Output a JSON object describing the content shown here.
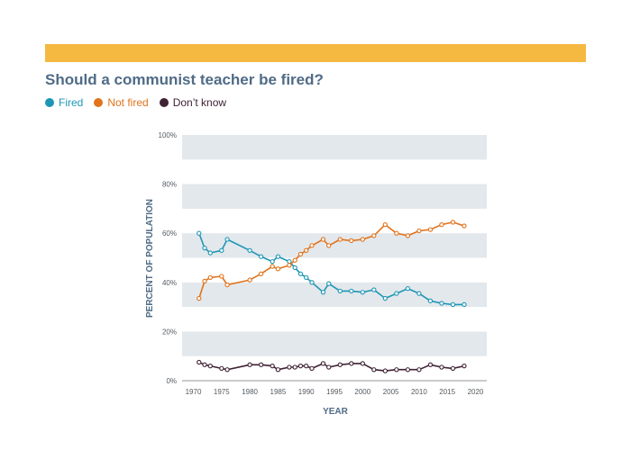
{
  "chart_data": {
    "type": "line",
    "title": "Should a communist teacher be fired?",
    "xlabel": "YEAR",
    "ylabel": "PERCENT OF POPULATION",
    "xlim": [
      1968,
      2022
    ],
    "ylim": [
      0,
      100
    ],
    "x_ticks": [
      "1970",
      "1975",
      "1980",
      "1985",
      "1990",
      "1995",
      "2000",
      "2005",
      "2010",
      "2015",
      "2020"
    ],
    "y_ticks": [
      "0%",
      "20%",
      "40%",
      "60%",
      "80%",
      "100%"
    ],
    "grid": "alternating horizontal bands",
    "legend_position": "top-left",
    "series": [
      {
        "name": "Fired",
        "color": "#1e96b5",
        "x": [
          1971,
          1972,
          1973,
          1975,
          1976,
          1980,
          1982,
          1984,
          1985,
          1987,
          1988,
          1989,
          1990,
          1991,
          1993,
          1994,
          1996,
          1998,
          2000,
          2002,
          2004,
          2006,
          2008,
          2010,
          2012,
          2014,
          2016,
          2018
        ],
        "values": [
          60,
          54,
          52,
          53,
          57.5,
          53,
          50.5,
          48.5,
          50.5,
          48.5,
          46,
          43.5,
          42,
          40,
          36,
          39.5,
          36.5,
          36.5,
          36,
          37,
          33.5,
          35.5,
          37.5,
          35.5,
          32.5,
          31.5,
          31,
          31
        ]
      },
      {
        "name": "Not fired",
        "color": "#e0731c",
        "x": [
          1971,
          1972,
          1973,
          1975,
          1976,
          1980,
          1982,
          1984,
          1985,
          1987,
          1988,
          1989,
          1990,
          1991,
          1993,
          1994,
          1996,
          1998,
          2000,
          2002,
          2004,
          2006,
          2008,
          2010,
          2012,
          2014,
          2016,
          2018
        ],
        "values": [
          33.5,
          40.5,
          42,
          42.5,
          39,
          41,
          43.5,
          46.5,
          45.5,
          47,
          49,
          51.5,
          53,
          55,
          57.5,
          55,
          57.5,
          57,
          57.5,
          59,
          63.5,
          60,
          59,
          61,
          61.5,
          63.5,
          64.5,
          63
        ]
      },
      {
        "name": "Don’t know",
        "color": "#3f2234",
        "x": [
          1971,
          1972,
          1973,
          1975,
          1976,
          1980,
          1982,
          1984,
          1985,
          1987,
          1988,
          1989,
          1990,
          1991,
          1993,
          1994,
          1996,
          1998,
          2000,
          2002,
          2004,
          2006,
          2008,
          2010,
          2012,
          2014,
          2016,
          2018
        ],
        "values": [
          7.5,
          6.5,
          6,
          5,
          4.5,
          6.5,
          6.5,
          6,
          4.5,
          5.5,
          5.5,
          6,
          6,
          5,
          7,
          5.5,
          6.5,
          7,
          7,
          4.5,
          4,
          4.5,
          4.5,
          4.5,
          6.5,
          5.5,
          5,
          6
        ]
      }
    ]
  },
  "colors": {
    "banner": "#f5b841",
    "title": "#4f6b86",
    "band": "#e3e8ec"
  }
}
